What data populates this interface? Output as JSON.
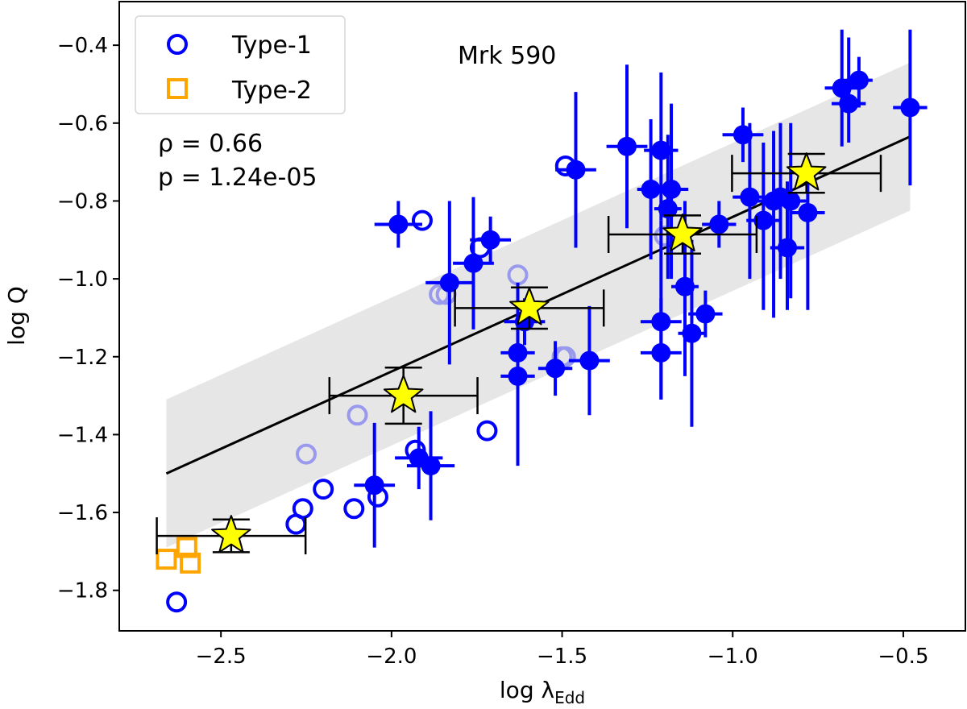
{
  "chart_data": {
    "type": "scatter",
    "title": "",
    "annotation": "Mrk 590",
    "stats": {
      "rho": "ρ = 0.66",
      "p": "p = 1.24e-05"
    },
    "xlabel": "log λ",
    "xlabel_sub": "Edd",
    "ylabel": "log Q",
    "xlim": [
      -2.798,
      -0.318
    ],
    "ylim": [
      -1.904,
      -0.288
    ],
    "xticks": [
      -2.5,
      -2.0,
      -1.5,
      -1.0,
      -0.5
    ],
    "xtick_labels": [
      "−2.5",
      "−2.0",
      "−1.5",
      "−1.0",
      "−0.5"
    ],
    "yticks": [
      -0.4,
      -0.6,
      -0.8,
      -1.0,
      -1.2,
      -1.4,
      -1.6,
      -1.8
    ],
    "ytick_labels": [
      "−0.4",
      "−0.6",
      "−0.8",
      "−1.0",
      "−1.2",
      "−1.4",
      "−1.6",
      "−1.8"
    ],
    "grid": false,
    "legend": {
      "placement": "top-left",
      "entries": [
        "Type-1",
        "Type-2"
      ]
    },
    "colors": {
      "type1": "#0000ff",
      "type1_faded": "#9999ee",
      "type2": "#ffa500",
      "star": "#ffff00",
      "band": "#e6e6e6",
      "fit": "#000000"
    },
    "type1_with_errors": {
      "fields": [
        "x",
        "y",
        "xerr",
        "y_low",
        "y_high"
      ],
      "points": [
        [
          -1.98,
          -0.86,
          0.07,
          -0.92,
          -0.8
        ],
        [
          -1.83,
          -1.01,
          0.07,
          -1.22,
          -0.8
        ],
        [
          -1.76,
          -0.96,
          0.06,
          -1.13,
          -0.79
        ],
        [
          -1.71,
          -0.9,
          0.06,
          -0.96,
          -0.84
        ],
        [
          -1.61,
          -1.11,
          0.06,
          -1.17,
          -1.05
        ],
        [
          -1.63,
          -1.19,
          0.05,
          -1.25,
          -1.01
        ],
        [
          -1.63,
          -1.25,
          0.05,
          -1.48,
          -1.13
        ],
        [
          -1.52,
          -1.23,
          0.05,
          -1.3,
          -1.16
        ],
        [
          -1.42,
          -1.21,
          0.06,
          -1.35,
          -1.07
        ],
        [
          -2.05,
          -1.53,
          0.06,
          -1.69,
          -1.37
        ],
        [
          -1.92,
          -1.46,
          0.07,
          -1.54,
          -1.38
        ],
        [
          -1.885,
          -1.48,
          0.07,
          -1.62,
          -1.34
        ],
        [
          -1.46,
          -0.72,
          0.06,
          -0.92,
          -0.52
        ],
        [
          -1.31,
          -0.66,
          0.06,
          -0.87,
          -0.45
        ],
        [
          -1.21,
          -0.67,
          0.05,
          -0.85,
          -0.47
        ],
        [
          -1.24,
          -0.77,
          0.04,
          -0.95,
          -0.59
        ],
        [
          -1.18,
          -0.77,
          0.05,
          -1.0,
          -0.55
        ],
        [
          -1.19,
          -0.82,
          0.04,
          -1.0,
          -0.63
        ],
        [
          -1.21,
          -1.11,
          0.06,
          -1.31,
          -0.85
        ],
        [
          -1.21,
          -1.19,
          0.06,
          -1.31,
          -1.05
        ],
        [
          -1.14,
          -1.02,
          0.04,
          -1.25,
          -0.8
        ],
        [
          -1.08,
          -1.09,
          0.05,
          -1.15,
          -1.03
        ],
        [
          -1.12,
          -1.14,
          0.04,
          -1.38,
          -0.9
        ],
        [
          -1.04,
          -0.86,
          0.05,
          -0.92,
          -0.8
        ],
        [
          -0.97,
          -0.63,
          0.06,
          -0.7,
          -0.56
        ],
        [
          -0.95,
          -0.79,
          0.05,
          -1.0,
          -0.6
        ],
        [
          -0.91,
          -0.85,
          0.05,
          -1.08,
          -0.65
        ],
        [
          -0.88,
          -0.8,
          0.05,
          -1.1,
          -0.62
        ],
        [
          -0.86,
          -0.79,
          0.05,
          -1.0,
          -0.6
        ],
        [
          -0.83,
          -0.8,
          0.05,
          -1.05,
          -0.6
        ],
        [
          -0.78,
          -0.83,
          0.05,
          -1.08,
          -0.7
        ],
        [
          -0.84,
          -0.92,
          0.05,
          -1.08,
          -0.75
        ],
        [
          -0.68,
          -0.51,
          0.05,
          -0.66,
          -0.36
        ],
        [
          -0.63,
          -0.49,
          0.04,
          -0.56,
          -0.43
        ],
        [
          -0.66,
          -0.55,
          0.05,
          -0.65,
          -0.38
        ],
        [
          -0.48,
          -0.56,
          0.05,
          -0.76,
          -0.36
        ]
      ]
    },
    "type1_open": [
      [
        -2.63,
        -1.83
      ],
      [
        -2.28,
        -1.63
      ],
      [
        -2.26,
        -1.59
      ],
      [
        -2.2,
        -1.54
      ],
      [
        -2.11,
        -1.59
      ],
      [
        -2.04,
        -1.56
      ],
      [
        -1.93,
        -1.44
      ],
      [
        -1.72,
        -1.39
      ],
      [
        -1.91,
        -0.85
      ],
      [
        -1.74,
        -0.92
      ],
      [
        -1.49,
        -0.71
      ]
    ],
    "type1_open_faded": [
      [
        -2.1,
        -1.35
      ],
      [
        -2.25,
        -1.45
      ],
      [
        -1.86,
        -1.04
      ],
      [
        -1.84,
        -1.04
      ],
      [
        -1.63,
        -0.99
      ],
      [
        -1.5,
        -1.2
      ],
      [
        -1.49,
        -1.2
      ],
      [
        -1.2,
        -0.89
      ]
    ],
    "type2": [
      [
        -2.66,
        -1.72
      ],
      [
        -2.6,
        -1.69
      ],
      [
        -2.59,
        -1.73
      ]
    ],
    "binned_stars": {
      "fields": [
        "x",
        "y",
        "xerr",
        "yerr"
      ],
      "points": [
        [
          -2.47,
          -1.66,
          0.218,
          0.042
        ],
        [
          -1.965,
          -1.3,
          0.217,
          0.072
        ],
        [
          -1.596,
          -1.075,
          0.218,
          0.053
        ],
        [
          -1.147,
          -0.886,
          0.217,
          0.049
        ],
        [
          -0.784,
          -0.729,
          0.218,
          0.05
        ]
      ]
    },
    "fit": {
      "slope": 0.397,
      "intercept": -0.444,
      "x_range": [
        -2.66,
        -0.48
      ],
      "band_halfwidth": 0.19
    }
  }
}
